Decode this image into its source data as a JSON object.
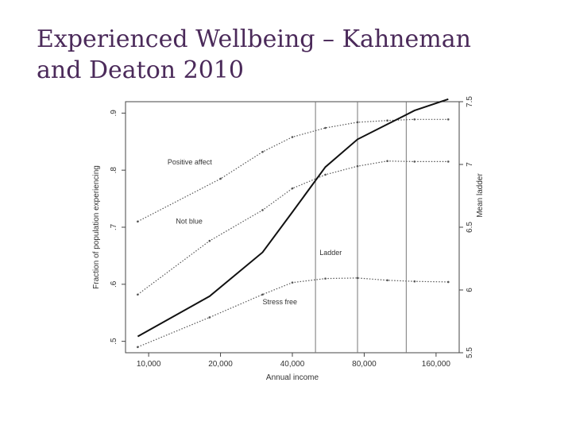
{
  "slide": {
    "title_line1": "Experienced Wellbeing – Kahneman",
    "title_line2": "and Deaton 2010"
  },
  "chart_data": {
    "type": "line",
    "xlabel": "Annual income",
    "ylabel_left": "Fraction of population experiencing",
    "ylabel_right": "Mean ladder",
    "x_scale": "log",
    "xlim": [
      8000,
      200000
    ],
    "x_ticks": [
      10000,
      20000,
      40000,
      80000,
      160000
    ],
    "x_tick_labels": [
      "10,000",
      "20,000",
      "40,000",
      "80,000",
      "160,000"
    ],
    "ylim_left": [
      0.48,
      0.92
    ],
    "y_ticks_left": [
      0.5,
      0.6,
      0.7,
      0.8,
      0.9
    ],
    "y_tick_labels_left": [
      ".5",
      ".6",
      ".7",
      ".8",
      ".9"
    ],
    "ylim_right": [
      5.5,
      7.5
    ],
    "y_ticks_right": [
      5.5,
      6,
      6.5,
      7,
      7.5
    ],
    "y_tick_labels_right": [
      "5.5",
      "6",
      "6.5",
      "7",
      "7.5"
    ],
    "vertical_lines": [
      50000,
      75000,
      120000
    ],
    "grid": false,
    "series": [
      {
        "name": "Positive affect",
        "axis": "left",
        "style": "dotted",
        "color": "#555555",
        "label_at": [
          12000,
          0.81
        ],
        "x": [
          9000,
          20000,
          30000,
          40000,
          55000,
          75000,
          100000,
          130000,
          180000
        ],
        "y": [
          0.71,
          0.785,
          0.832,
          0.858,
          0.874,
          0.884,
          0.887,
          0.889,
          0.889
        ]
      },
      {
        "name": "Not blue",
        "axis": "left",
        "style": "dotted",
        "color": "#555555",
        "label_at": [
          13000,
          0.706
        ],
        "x": [
          9000,
          18000,
          30000,
          40000,
          55000,
          75000,
          100000,
          130000,
          180000
        ],
        "y": [
          0.582,
          0.676,
          0.73,
          0.768,
          0.792,
          0.807,
          0.816,
          0.815,
          0.815
        ]
      },
      {
        "name": "Ladder",
        "axis": "right",
        "style": "solid",
        "color": "#111111",
        "label_at": [
          52000,
          6.28
        ],
        "x": [
          9000,
          18000,
          30000,
          40000,
          55000,
          75000,
          100000,
          130000,
          180000
        ],
        "y": [
          5.63,
          5.95,
          6.3,
          6.62,
          6.98,
          7.2,
          7.32,
          7.43,
          7.52
        ]
      },
      {
        "name": "Stress free",
        "axis": "left",
        "style": "dotted",
        "color": "#555555",
        "label_at": [
          30000,
          0.565
        ],
        "x": [
          9000,
          18000,
          30000,
          40000,
          55000,
          75000,
          100000,
          130000,
          180000
        ],
        "y": [
          0.49,
          0.542,
          0.582,
          0.603,
          0.61,
          0.611,
          0.607,
          0.605,
          0.604
        ]
      }
    ]
  }
}
